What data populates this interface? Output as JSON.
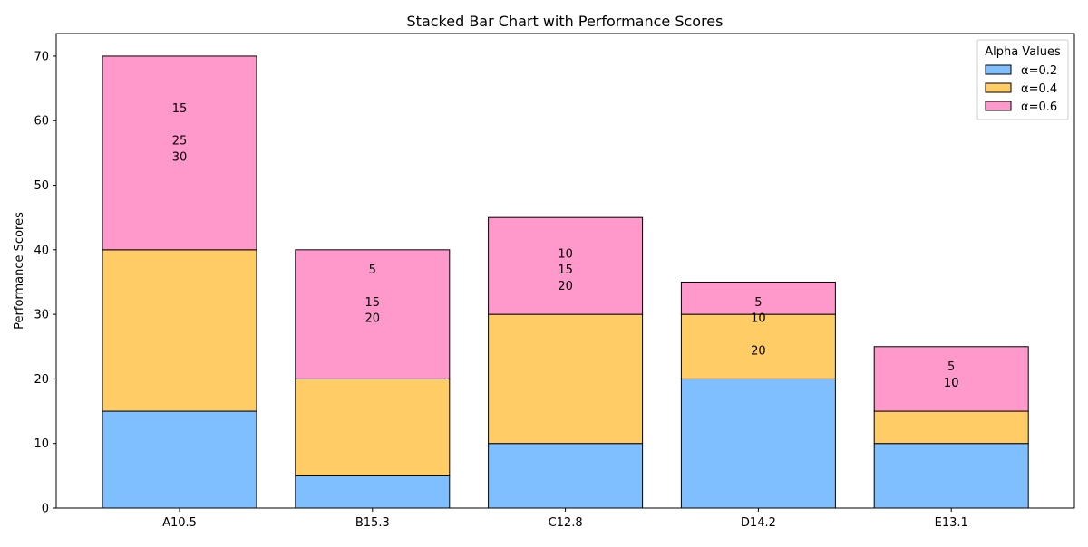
{
  "chart_data": {
    "type": "bar",
    "stacked": true,
    "title": "Stacked Bar Chart with Performance Scores",
    "xlabel": "",
    "ylabel": "Performance Scores",
    "ylim": [
      0,
      73.5
    ],
    "yticks": [
      0,
      10,
      20,
      30,
      40,
      50,
      60,
      70
    ],
    "categories": [
      "A10.5",
      "B15.3",
      "C12.8",
      "D14.2",
      "E13.1"
    ],
    "grid": false,
    "legend": {
      "title": "Alpha Values",
      "placement": "top-right"
    },
    "series": [
      {
        "name": "α=0.2",
        "values": [
          15,
          5,
          10,
          20,
          10
        ],
        "color": "#80bfff"
      },
      {
        "name": "α=0.4",
        "values": [
          25,
          15,
          20,
          10,
          5
        ],
        "color": "#ffcc66"
      },
      {
        "name": "α=0.6",
        "values": [
          30,
          20,
          15,
          5,
          10
        ],
        "color": "#ff99cc"
      }
    ],
    "bar_labels": [
      {
        "category": "A10.5",
        "labels": [
          {
            "text": "15",
            "y": 62
          },
          {
            "text": "25",
            "y": 57
          },
          {
            "text": "30",
            "y": 54.5
          }
        ]
      },
      {
        "category": "B15.3",
        "labels": [
          {
            "text": "5",
            "y": 37
          },
          {
            "text": "15",
            "y": 32
          },
          {
            "text": "20",
            "y": 29.5
          }
        ]
      },
      {
        "category": "C12.8",
        "labels": [
          {
            "text": "10",
            "y": 39.5
          },
          {
            "text": "15",
            "y": 37
          },
          {
            "text": "20",
            "y": 34.5
          }
        ]
      },
      {
        "category": "D14.2",
        "labels": [
          {
            "text": "5",
            "y": 32
          },
          {
            "text": "10",
            "y": 29.5
          },
          {
            "text": "20",
            "y": 24.5
          }
        ]
      },
      {
        "category": "E13.1",
        "labels": [
          {
            "text": "5",
            "y": 22
          },
          {
            "text": "10",
            "y": 19.5
          },
          {
            "text": "10",
            "y": 19.5
          }
        ]
      }
    ]
  }
}
